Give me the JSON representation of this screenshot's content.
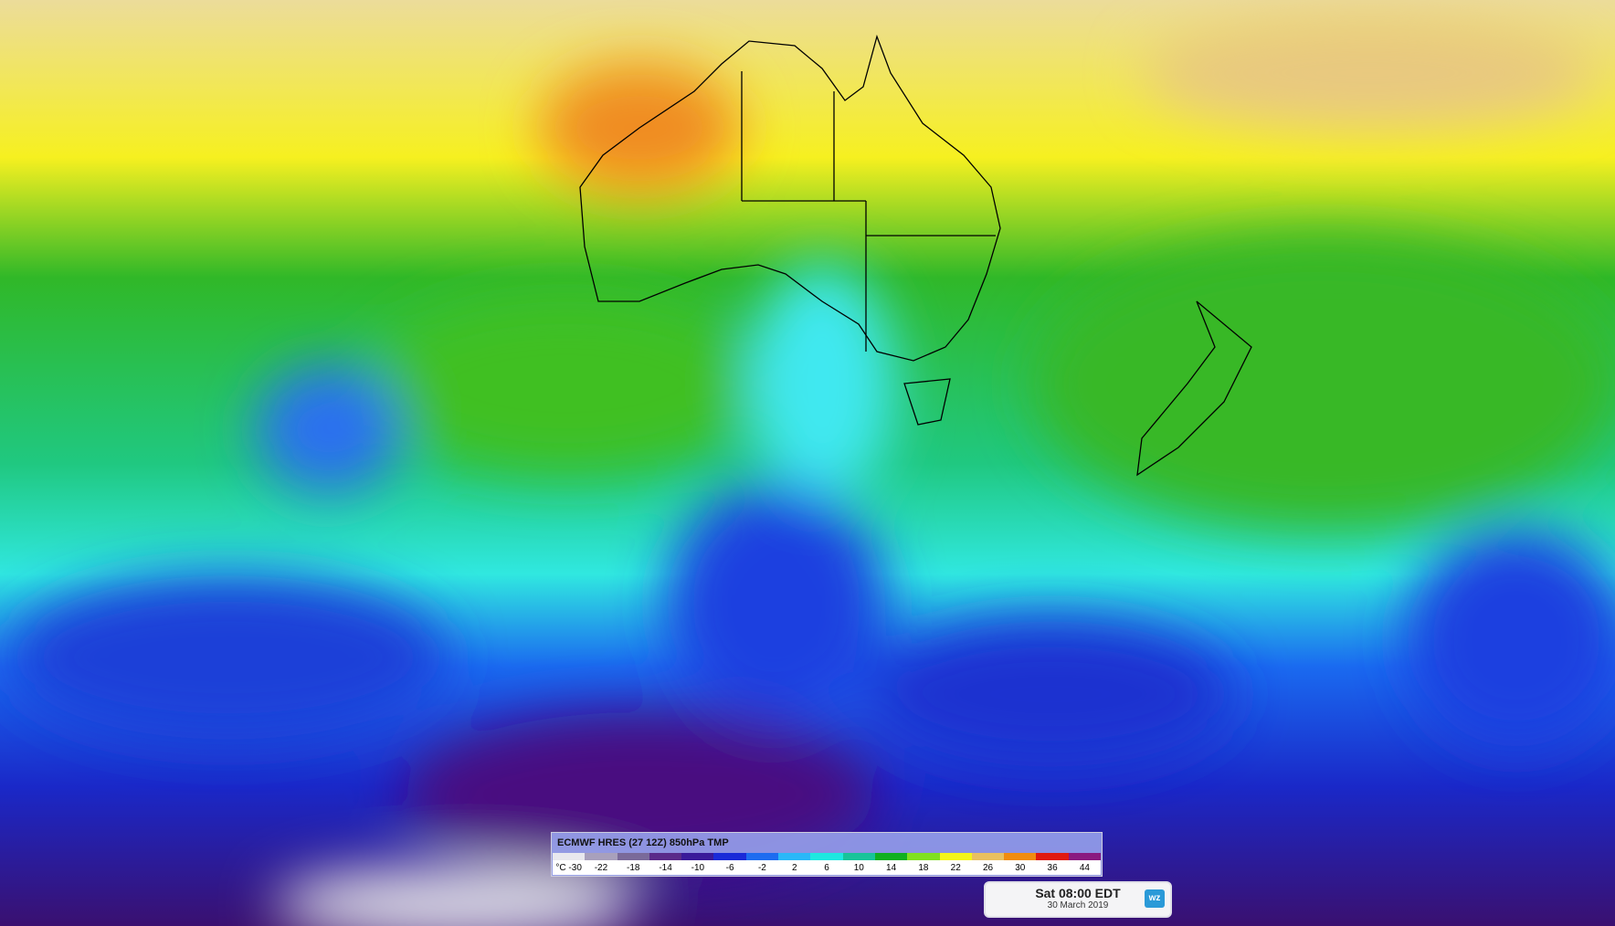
{
  "legend": {
    "title": "ECMWF HRES (27 12Z) 850hPa TMP",
    "labels": [
      "°C -30",
      "-22",
      "-18",
      "-14",
      "-10",
      "-6",
      "-2",
      "2",
      "6",
      "10",
      "14",
      "18",
      "22",
      "26",
      "30",
      "36",
      "44"
    ],
    "colors": [
      "#e8e8ee",
      "#a8a0bc",
      "#7a6a9a",
      "#5a2a8a",
      "#3a1a9a",
      "#1a2ad8",
      "#1e6cf0",
      "#2ab8f8",
      "#1ee8e0",
      "#18c49a",
      "#10b020",
      "#80e020",
      "#f4f41a",
      "#e8c060",
      "#f08c10",
      "#e01a10",
      "#8a1a80"
    ]
  },
  "time_box": {
    "time": "Sat 08:00 EDT",
    "date": "30 March 2019",
    "logo": "wz"
  }
}
